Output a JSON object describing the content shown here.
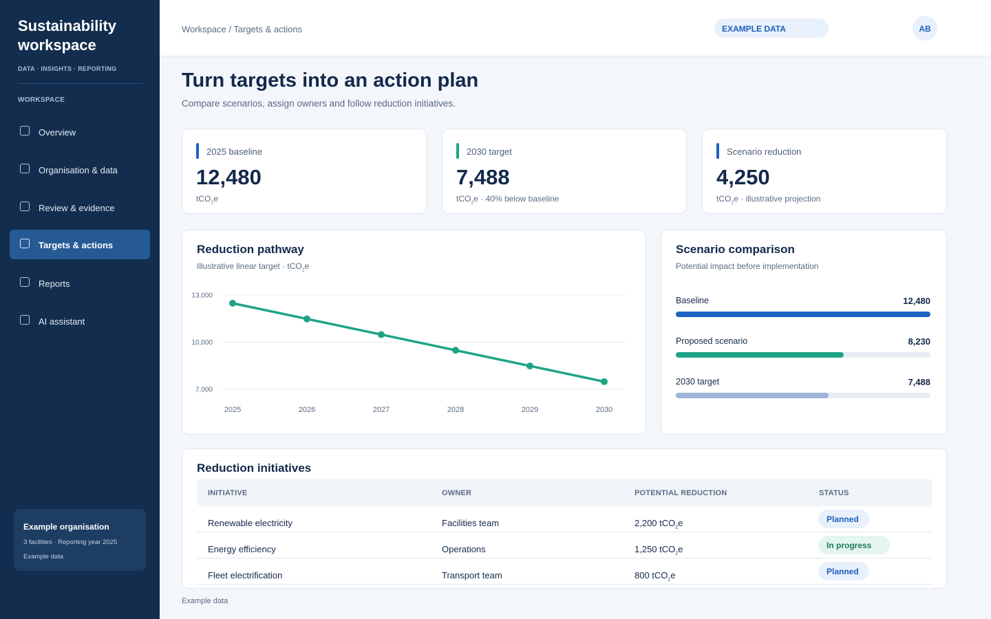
{
  "sidebar": {
    "brand": "Sustainability workspace",
    "tagline": "DATA · INSIGHTS · REPORTING",
    "section_label": "WORKSPACE",
    "items": [
      {
        "label": "Overview"
      },
      {
        "label": "Organisation & data"
      },
      {
        "label": "Review & evidence"
      },
      {
        "label": "Targets & actions",
        "active": true
      },
      {
        "label": "Reports"
      },
      {
        "label": "AI assistant"
      }
    ],
    "org": {
      "title": "Example organisation",
      "meta": "3 facilities · Reporting year 2025",
      "data_note": "Example data"
    }
  },
  "header": {
    "breadcrumb": "Workspace / Targets & actions",
    "badge": "EXAMPLE DATA",
    "avatar": "AB"
  },
  "page": {
    "title": "Turn targets into an action plan",
    "subtitle": "Compare scenarios, assign owners and follow reduction initiatives."
  },
  "kpis": [
    {
      "label": "2025 baseline",
      "value": "12,480",
      "unit": "tCO",
      "unit_sub": "2",
      "unit_tail": "e",
      "note": "",
      "color": "#1e62c4"
    },
    {
      "label": "2030 target",
      "value": "7,488",
      "unit": "tCO",
      "unit_sub": "2",
      "unit_tail": "e",
      "note": " · 40% below baseline",
      "color": "#1fa386"
    },
    {
      "label": "Scenario reduction",
      "value": "4,250",
      "unit": "tCO",
      "unit_sub": "2",
      "unit_tail": "e",
      "note": " · illustrative projection",
      "color": "#1e62c4"
    }
  ],
  "pathway": {
    "title": "Reduction pathway",
    "subtitle_pre": "Illustrative linear target · tCO",
    "subtitle_sub": "2",
    "subtitle_tail": "e"
  },
  "chart_data": {
    "type": "line",
    "title": "Reduction pathway",
    "x": [
      "2025",
      "2026",
      "2027",
      "2028",
      "2029",
      "2030"
    ],
    "series": [
      {
        "values": [
          12480,
          11482,
          10483,
          9485,
          8486,
          7488
        ],
        "color": "#1fa386"
      }
    ],
    "yticks": [
      "13,000",
      "10,000",
      "7,000"
    ],
    "ytick_values": [
      13000,
      10000,
      7000
    ],
    "ylim": [
      7000,
      13000
    ],
    "grid": true
  },
  "scenario": {
    "title": "Scenario comparison",
    "subtitle": "Potential impact before implementation",
    "max": 12480,
    "rows": [
      {
        "label": "Baseline",
        "value": "12,480",
        "num": 12480,
        "color": "#1e62c4"
      },
      {
        "label": "Proposed scenario",
        "value": "8,230",
        "num": 8230,
        "color": "#1fa386"
      },
      {
        "label": "2030 target",
        "value": "7,488",
        "num": 7488,
        "color": "#9db4d8"
      }
    ]
  },
  "initiatives": {
    "title": "Reduction initiatives",
    "columns": [
      "INITIATIVE",
      "OWNER",
      "POTENTIAL REDUCTION",
      "STATUS"
    ],
    "rows": [
      {
        "initiative": "Renewable electricity",
        "owner": "Facilities team",
        "reduction": "2,200 tCO",
        "status": "Planned"
      },
      {
        "initiative": "Energy efficiency",
        "owner": "Operations",
        "reduction": "1,250 tCO",
        "status": "In progress"
      },
      {
        "initiative": "Fleet electrification",
        "owner": "Transport team",
        "reduction": "800 tCO",
        "status": "Planned"
      }
    ],
    "unit_sub": "2",
    "unit_tail": "e"
  },
  "footnote": "Example data"
}
